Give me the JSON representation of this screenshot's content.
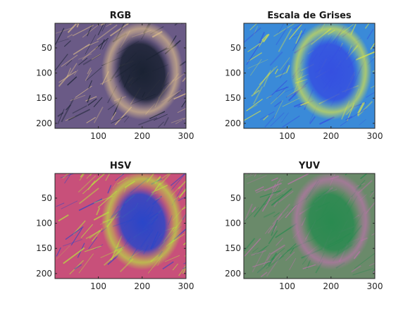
{
  "chart_data": [
    {
      "type": "image",
      "title": "RGB",
      "colormap": "rgb-photo",
      "xlim": [
        1,
        300
      ],
      "ylim": [
        1,
        210
      ],
      "xticks": [
        100,
        200,
        300
      ],
      "yticks": [
        50,
        100,
        150,
        200
      ],
      "y_direction": "reverse"
    },
    {
      "type": "image",
      "title": "Escala de Grises",
      "colormap": "parula-like",
      "xlim": [
        1,
        300
      ],
      "ylim": [
        1,
        210
      ],
      "xticks": [
        100,
        200,
        300
      ],
      "yticks": [
        50,
        100,
        150,
        200
      ],
      "y_direction": "reverse"
    },
    {
      "type": "image",
      "title": "HSV",
      "colormap": "hsv-false-color",
      "xlim": [
        1,
        300
      ],
      "ylim": [
        1,
        210
      ],
      "xticks": [
        100,
        200,
        300
      ],
      "yticks": [
        50,
        100,
        150,
        200
      ],
      "y_direction": "reverse"
    },
    {
      "type": "image",
      "title": "YUV",
      "colormap": "yuv-false-color",
      "xlim": [
        1,
        300
      ],
      "ylim": [
        1,
        210
      ],
      "xticks": [
        100,
        200,
        300
      ],
      "yticks": [
        50,
        100,
        150,
        200
      ],
      "y_direction": "reverse"
    }
  ],
  "colors": {
    "rgb": {
      "base": "#6a5a86",
      "light": "#d8b98a",
      "dark": "#1a2233"
    },
    "gray": {
      "base": "#3a8ad8",
      "light": "#d6e24a",
      "dark": "#3550e0"
    },
    "hsv": {
      "base": "#c8507a",
      "light": "#b8e040",
      "dark": "#2a46c8"
    },
    "yuv": {
      "base": "#6a8a6a",
      "light": "#b874a8",
      "dark": "#2a8a50"
    }
  }
}
